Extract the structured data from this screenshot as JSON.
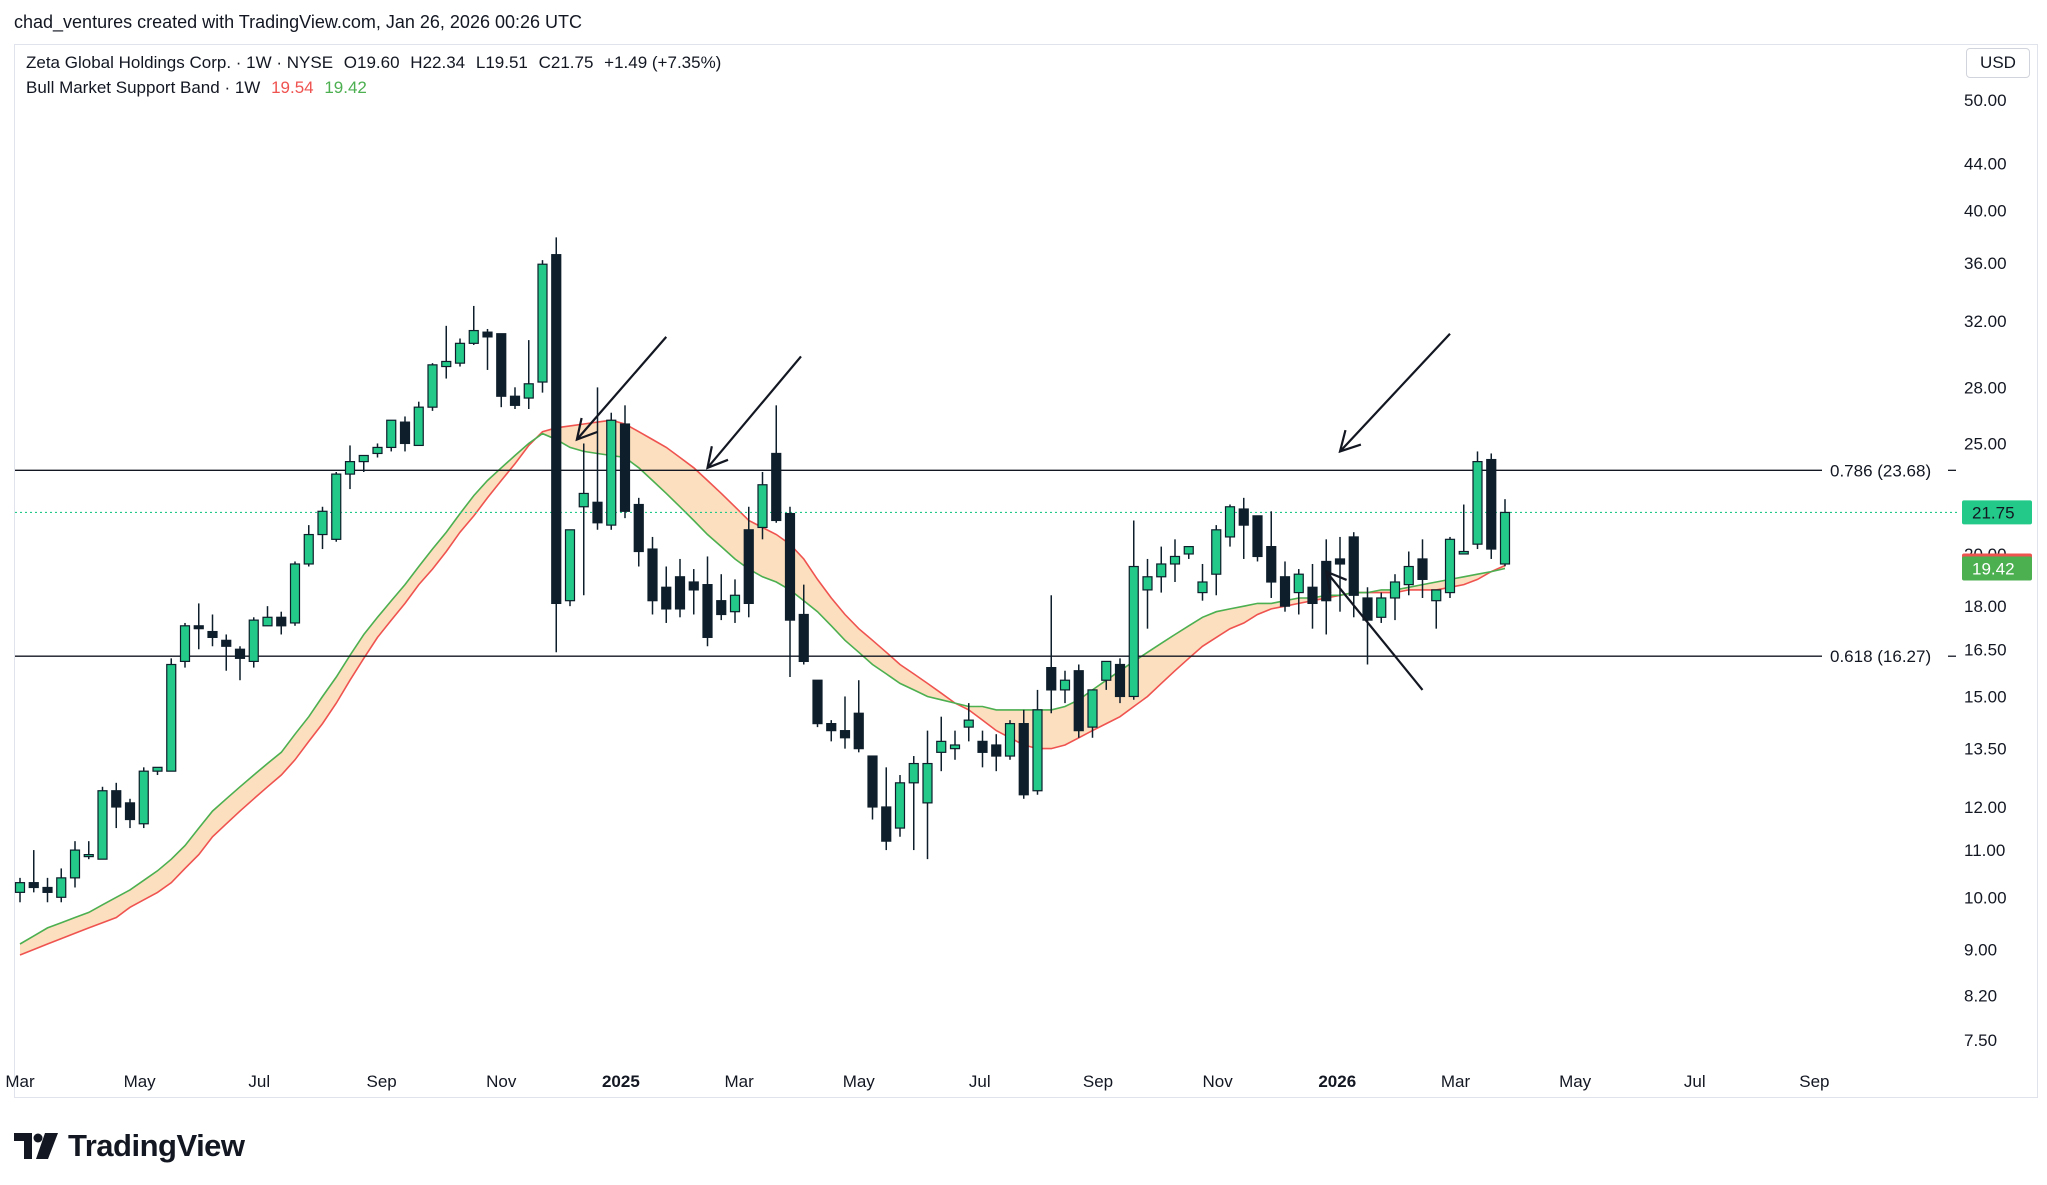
{
  "attribution": "chad_ventures created with TradingView.com, Jan 26, 2026 00:26 UTC",
  "legend": {
    "symbol_line": "Zeta Global Holdings Corp. · 1W · NYSE",
    "ohlc": {
      "o": "O19.60",
      "h": "H22.34",
      "l": "L19.51",
      "c": "C21.75",
      "change": "+1.49 (+7.35%)"
    },
    "indicator_name": "Bull Market Support Band · 1W",
    "indicator_values": [
      "19.54",
      "19.42"
    ]
  },
  "currency": "USD",
  "brand": "TradingView",
  "colors": {
    "up": "#22c989",
    "down": "#0e1e2b",
    "band_red": "#ef5350",
    "band_green": "#4caf50",
    "band_fill": "#fbd9b3",
    "price_line": "#22c989",
    "fib_line": "#131722"
  },
  "chart_data": {
    "type": "candlestick",
    "title": "Zeta Global Holdings Corp. · 1W · NYSE",
    "y_scale": "log",
    "ylim": [
      7.2,
      56
    ],
    "y_ticks": [
      "50.00",
      "44.00",
      "40.00",
      "36.00",
      "32.00",
      "28.00",
      "25.00",
      "20.00",
      "18.00",
      "16.50",
      "15.00",
      "13.50",
      "12.00",
      "11.00",
      "10.00",
      "9.00",
      "8.20",
      "7.50"
    ],
    "x_ticks": [
      {
        "label": "Mar",
        "t": 0.0,
        "bold": false
      },
      {
        "label": "May",
        "t": 8.7,
        "bold": false
      },
      {
        "label": "Jul",
        "t": 17.4,
        "bold": false
      },
      {
        "label": "Sep",
        "t": 26.3,
        "bold": false
      },
      {
        "label": "Nov",
        "t": 35.0,
        "bold": false
      },
      {
        "label": "2025",
        "t": 43.7,
        "bold": true
      },
      {
        "label": "Mar",
        "t": 52.3,
        "bold": false
      },
      {
        "label": "May",
        "t": 61.0,
        "bold": false
      },
      {
        "label": "Jul",
        "t": 69.8,
        "bold": false
      },
      {
        "label": "Sep",
        "t": 78.4,
        "bold": false
      },
      {
        "label": "Nov",
        "t": 87.1,
        "bold": false
      },
      {
        "label": "2026",
        "t": 95.8,
        "bold": true
      },
      {
        "label": "Mar",
        "t": 104.4,
        "bold": false
      },
      {
        "label": "May",
        "t": 113.1,
        "bold": false
      },
      {
        "label": "Jul",
        "t": 121.8,
        "bold": false
      },
      {
        "label": "Sep",
        "t": 130.5,
        "bold": false
      }
    ],
    "candles": [
      [
        10.1,
        10.4,
        10.3,
        9.9
      ],
      [
        10.3,
        11.0,
        10.2,
        10.1
      ],
      [
        10.2,
        10.4,
        10.1,
        9.9
      ],
      [
        10.0,
        10.6,
        10.4,
        9.9
      ],
      [
        10.4,
        11.2,
        11.0,
        10.2
      ],
      [
        10.9,
        11.2,
        10.9,
        10.8
      ],
      [
        10.8,
        12.5,
        12.4,
        10.8
      ],
      [
        12.4,
        12.6,
        12.0,
        11.5
      ],
      [
        12.1,
        12.2,
        11.7,
        11.5
      ],
      [
        11.6,
        13.0,
        12.9,
        11.5
      ],
      [
        12.9,
        13.0,
        13.0,
        12.8
      ],
      [
        12.9,
        16.2,
        16.0,
        12.9
      ],
      [
        16.1,
        17.4,
        17.3,
        15.9
      ],
      [
        17.3,
        18.1,
        17.2,
        16.5
      ],
      [
        17.1,
        17.7,
        16.9,
        16.6
      ],
      [
        16.8,
        17.0,
        16.6,
        15.8
      ],
      [
        16.5,
        16.6,
        16.2,
        15.5
      ],
      [
        16.1,
        17.6,
        17.5,
        15.9
      ],
      [
        17.3,
        18.0,
        17.6,
        17.3
      ],
      [
        17.6,
        17.8,
        17.3,
        17.0
      ],
      [
        17.4,
        19.7,
        19.6,
        17.3
      ],
      [
        19.6,
        21.2,
        20.8,
        19.5
      ],
      [
        20.8,
        22.0,
        21.8,
        20.2
      ],
      [
        20.6,
        23.6,
        23.5,
        20.5
      ],
      [
        23.5,
        24.9,
        24.1,
        22.8
      ],
      [
        24.1,
        24.2,
        24.4,
        23.6
      ],
      [
        24.5,
        25.0,
        24.8,
        24.3
      ],
      [
        24.8,
        25.8,
        26.2,
        24.6
      ],
      [
        26.1,
        26.4,
        25.0,
        24.6
      ],
      [
        24.9,
        27.2,
        26.9,
        24.9
      ],
      [
        26.9,
        29.4,
        29.3,
        26.7
      ],
      [
        29.2,
        31.7,
        29.5,
        28.5
      ],
      [
        29.4,
        30.9,
        30.6,
        29.2
      ],
      [
        30.6,
        33.0,
        31.4,
        30.5
      ],
      [
        31.3,
        31.5,
        31.0,
        29.0
      ],
      [
        31.2,
        30.0,
        27.5,
        26.9
      ],
      [
        27.5,
        28.0,
        27.0,
        26.8
      ],
      [
        27.4,
        30.8,
        28.2,
        26.8
      ],
      [
        28.3,
        36.2,
        35.9,
        27.7
      ],
      [
        36.6,
        37.9,
        18.1,
        16.4
      ],
      [
        18.2,
        21.0,
        21.0,
        18.0
      ],
      [
        22.0,
        25.0,
        22.6,
        18.4
      ],
      [
        22.2,
        28.0,
        21.3,
        21.0
      ],
      [
        21.2,
        26.6,
        26.2,
        21.0
      ],
      [
        26.0,
        27.0,
        21.8,
        21.5
      ],
      [
        22.1,
        22.4,
        20.1,
        19.5
      ],
      [
        20.2,
        20.7,
        18.2,
        17.7
      ],
      [
        18.7,
        19.5,
        17.9,
        17.4
      ],
      [
        19.1,
        19.8,
        17.9,
        17.6
      ],
      [
        18.9,
        19.4,
        18.6,
        17.7
      ],
      [
        18.8,
        19.9,
        16.9,
        16.6
      ],
      [
        18.2,
        19.2,
        17.7,
        17.5
      ],
      [
        17.8,
        19.0,
        18.4,
        17.4
      ],
      [
        21.0,
        22.0,
        18.1,
        17.6
      ],
      [
        21.1,
        23.6,
        23.0,
        20.6
      ],
      [
        24.5,
        27.0,
        21.4,
        21.3
      ],
      [
        21.7,
        22.0,
        17.5,
        15.6
      ],
      [
        17.7,
        18.8,
        16.1,
        16.0
      ],
      [
        15.5,
        15.4,
        14.2,
        14.1
      ],
      [
        14.2,
        14.3,
        14.0,
        13.7
      ],
      [
        14.0,
        15.0,
        13.8,
        13.5
      ],
      [
        14.5,
        15.5,
        13.5,
        13.4
      ],
      [
        13.3,
        13.0,
        12.0,
        11.7
      ],
      [
        12.0,
        13.0,
        11.2,
        11.0
      ],
      [
        11.5,
        12.8,
        12.6,
        11.3
      ],
      [
        12.6,
        13.3,
        13.1,
        11.0
      ],
      [
        12.1,
        14.0,
        13.1,
        10.8
      ],
      [
        13.4,
        14.4,
        13.7,
        12.9
      ],
      [
        13.5,
        14.0,
        13.6,
        13.2
      ],
      [
        14.1,
        14.8,
        14.3,
        13.7
      ],
      [
        13.7,
        14.0,
        13.4,
        13.0
      ],
      [
        13.6,
        13.9,
        13.3,
        12.9
      ],
      [
        13.3,
        14.3,
        14.2,
        13.2
      ],
      [
        14.2,
        14.6,
        12.3,
        12.2
      ],
      [
        12.4,
        15.2,
        14.6,
        12.3
      ],
      [
        15.9,
        18.4,
        15.2,
        14.5
      ],
      [
        15.2,
        15.8,
        15.5,
        14.8
      ],
      [
        15.8,
        16.0,
        14.0,
        13.8
      ],
      [
        14.1,
        15.2,
        15.2,
        13.8
      ],
      [
        15.5,
        15.9,
        16.1,
        15.2
      ],
      [
        16.0,
        16.2,
        15.0,
        14.8
      ],
      [
        15.0,
        21.4,
        19.5,
        14.9
      ],
      [
        18.6,
        19.8,
        19.1,
        17.2
      ],
      [
        19.1,
        20.3,
        19.6,
        18.5
      ],
      [
        19.6,
        20.6,
        19.9,
        18.9
      ],
      [
        20.0,
        20.2,
        20.3,
        19.8
      ],
      [
        18.5,
        19.6,
        18.9,
        18.2
      ],
      [
        19.2,
        21.2,
        21.0,
        18.4
      ],
      [
        20.7,
        22.1,
        22.0,
        20.3
      ],
      [
        21.9,
        22.4,
        21.2,
        19.8
      ],
      [
        21.6,
        21.2,
        19.9,
        19.7
      ],
      [
        20.3,
        21.8,
        18.9,
        18.3
      ],
      [
        19.1,
        19.7,
        18.0,
        17.8
      ],
      [
        18.5,
        19.4,
        19.2,
        17.7
      ],
      [
        18.7,
        19.6,
        18.1,
        17.2
      ],
      [
        19.7,
        20.6,
        18.2,
        17.0
      ],
      [
        19.8,
        20.7,
        19.6,
        17.8
      ],
      [
        20.7,
        20.9,
        18.4,
        17.6
      ],
      [
        18.3,
        18.7,
        17.5,
        16.0
      ],
      [
        17.6,
        18.5,
        18.3,
        17.4
      ],
      [
        18.3,
        19.2,
        18.9,
        17.5
      ],
      [
        18.8,
        20.1,
        19.5,
        18.4
      ],
      [
        19.8,
        20.6,
        19.0,
        18.3
      ],
      [
        18.2,
        18.6,
        18.6,
        17.2
      ],
      [
        18.5,
        20.7,
        20.6,
        18.3
      ],
      [
        20.0,
        22.1,
        20.1,
        20.0
      ],
      [
        20.4,
        24.6,
        24.1,
        20.2
      ],
      [
        24.2,
        24.5,
        20.2,
        19.8
      ],
      [
        19.6,
        22.34,
        21.75,
        19.51
      ]
    ],
    "bull_market_support_band": {
      "sma_20w_red": [
        8.9,
        9.0,
        9.1,
        9.2,
        9.3,
        9.4,
        9.5,
        9.6,
        9.8,
        9.95,
        10.1,
        10.3,
        10.6,
        10.9,
        11.3,
        11.6,
        11.9,
        12.2,
        12.5,
        12.8,
        13.2,
        13.7,
        14.2,
        14.8,
        15.5,
        16.2,
        16.9,
        17.5,
        18.1,
        18.8,
        19.4,
        20.1,
        20.9,
        21.6,
        22.4,
        23.2,
        24.0,
        24.9,
        25.6,
        25.8,
        25.9,
        26.0,
        26.1,
        26.2,
        26.0,
        25.6,
        25.2,
        24.8,
        24.3,
        23.8,
        23.2,
        22.6,
        22.0,
        21.4,
        21.1,
        20.8,
        20.4,
        19.8,
        19.0,
        18.3,
        17.7,
        17.2,
        16.8,
        16.4,
        16.0,
        15.7,
        15.4,
        15.1,
        14.8,
        14.6,
        14.3,
        14.0,
        13.8,
        13.6,
        13.5,
        13.5,
        13.6,
        13.8,
        14.0,
        14.2,
        14.4,
        14.7,
        15.0,
        15.4,
        15.8,
        16.2,
        16.6,
        16.9,
        17.2,
        17.4,
        17.7,
        17.9,
        18.0,
        18.1,
        18.2,
        18.3,
        18.4,
        18.5,
        18.5,
        18.5,
        18.5,
        18.6,
        18.6,
        18.6,
        18.7,
        18.8,
        19.0,
        19.3,
        19.54
      ],
      "ema_21w_green": [
        9.1,
        9.25,
        9.4,
        9.5,
        9.6,
        9.7,
        9.85,
        10.0,
        10.15,
        10.35,
        10.55,
        10.8,
        11.1,
        11.5,
        11.9,
        12.2,
        12.5,
        12.8,
        13.1,
        13.4,
        13.9,
        14.4,
        15.0,
        15.6,
        16.3,
        17.0,
        17.6,
        18.2,
        18.8,
        19.5,
        20.2,
        20.9,
        21.7,
        22.5,
        23.2,
        23.8,
        24.4,
        25.0,
        25.5,
        25.2,
        24.8,
        24.6,
        24.5,
        24.4,
        24.3,
        23.8,
        23.2,
        22.6,
        22.0,
        21.4,
        20.8,
        20.3,
        19.8,
        19.4,
        19.1,
        18.9,
        18.6,
        18.2,
        17.8,
        17.3,
        16.8,
        16.4,
        16.0,
        15.7,
        15.4,
        15.2,
        15.0,
        14.9,
        14.8,
        14.7,
        14.7,
        14.6,
        14.6,
        14.6,
        14.6,
        14.6,
        14.7,
        14.9,
        15.2,
        15.5,
        15.8,
        16.1,
        16.4,
        16.7,
        17.0,
        17.3,
        17.6,
        17.8,
        17.9,
        18.0,
        18.1,
        18.1,
        18.2,
        18.3,
        18.3,
        18.4,
        18.4,
        18.5,
        18.5,
        18.6,
        18.6,
        18.7,
        18.8,
        18.9,
        19.0,
        19.1,
        19.2,
        19.3,
        19.42
      ]
    },
    "last_price": "21.75",
    "horizontal_levels": [
      {
        "label": "0.786 (23.68)",
        "value": 23.68
      },
      {
        "label": "0.618 (16.27)",
        "value": 16.27
      }
    ],
    "price_badges": [
      {
        "label": "21.75",
        "value": 21.75,
        "color": "#22c989"
      },
      {
        "label": "19.54",
        "value": 19.54,
        "color": "#ef5350"
      },
      {
        "label": "19.42",
        "value": 19.42,
        "color": "#4caf50"
      }
    ],
    "annotations": [
      {
        "type": "arrow",
        "from": [
          47.0,
          31.0
        ],
        "to": [
          40.5,
          25.2
        ]
      },
      {
        "type": "arrow",
        "from": [
          56.8,
          29.8
        ],
        "to": [
          50.0,
          23.8
        ]
      },
      {
        "type": "arrow",
        "from": [
          104.0,
          31.2
        ],
        "to": [
          96.0,
          24.6
        ]
      },
      {
        "type": "arrow",
        "from": [
          102.0,
          15.2
        ],
        "to": [
          95.0,
          19.3
        ]
      }
    ]
  }
}
